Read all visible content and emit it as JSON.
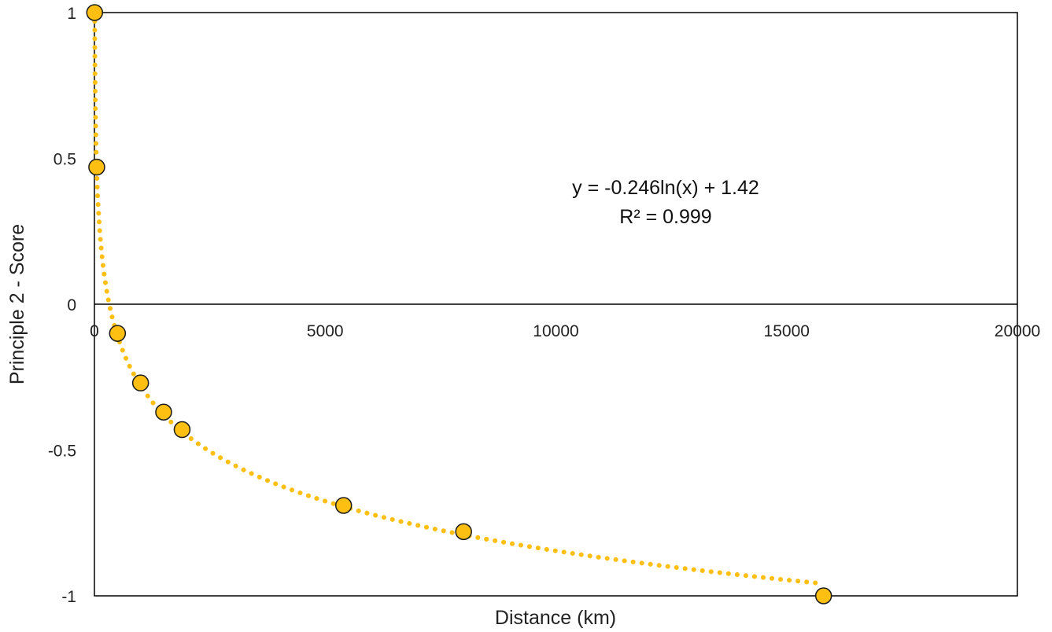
{
  "chart_data": {
    "type": "scatter",
    "title": "",
    "xlabel": "Distance (km)",
    "ylabel": "Principle 2 - Score",
    "xlim": [
      0,
      20000
    ],
    "ylim": [
      -1,
      1
    ],
    "x_ticks": [
      "0",
      "5000",
      "10000",
      "15000",
      "20000"
    ],
    "y_ticks": [
      "1",
      "0.5",
      "0",
      "-0.5",
      "-1"
    ],
    "grid": false,
    "legend": "none",
    "series": [
      {
        "points": [
          {
            "x": 5,
            "y": 1.0
          },
          {
            "x": 50,
            "y": 0.47
          },
          {
            "x": 500,
            "y": -0.1
          },
          {
            "x": 1000,
            "y": -0.27
          },
          {
            "x": 1500,
            "y": -0.37
          },
          {
            "x": 1900,
            "y": -0.43
          },
          {
            "x": 5400,
            "y": -0.69
          },
          {
            "x": 8000,
            "y": -0.78
          },
          {
            "x": 15800,
            "y": -1.0
          }
        ],
        "color": "#FDBF12"
      }
    ],
    "trendline": {
      "type": "logarithmic",
      "a": -0.246,
      "b": 1.42,
      "color": "#FDBF12",
      "style": "dotted",
      "equation_text": "y = -0.246ln(x) + 1.42",
      "r2_text": "R² = 0.999"
    }
  }
}
